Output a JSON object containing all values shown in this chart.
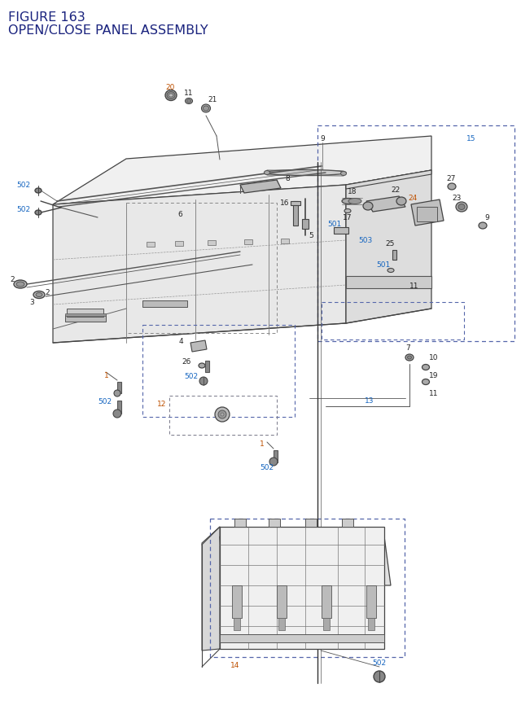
{
  "title_line1": "FIGURE 163",
  "title_line2": "OPEN/CLOSE PANEL ASSEMBLY",
  "title_color": "#1a237e",
  "title_fontsize": 11.5,
  "bg_color": "#ffffff",
  "fig_width": 6.4,
  "fig_height": 8.62,
  "blue": "#1565c0",
  "orange": "#bf5000",
  "black": "#222222",
  "teal": "#007060",
  "gray_line": "#444444",
  "gray_fill": "#888888",
  "light_gray": "#cccccc",
  "dashed_color": "#5566aa"
}
